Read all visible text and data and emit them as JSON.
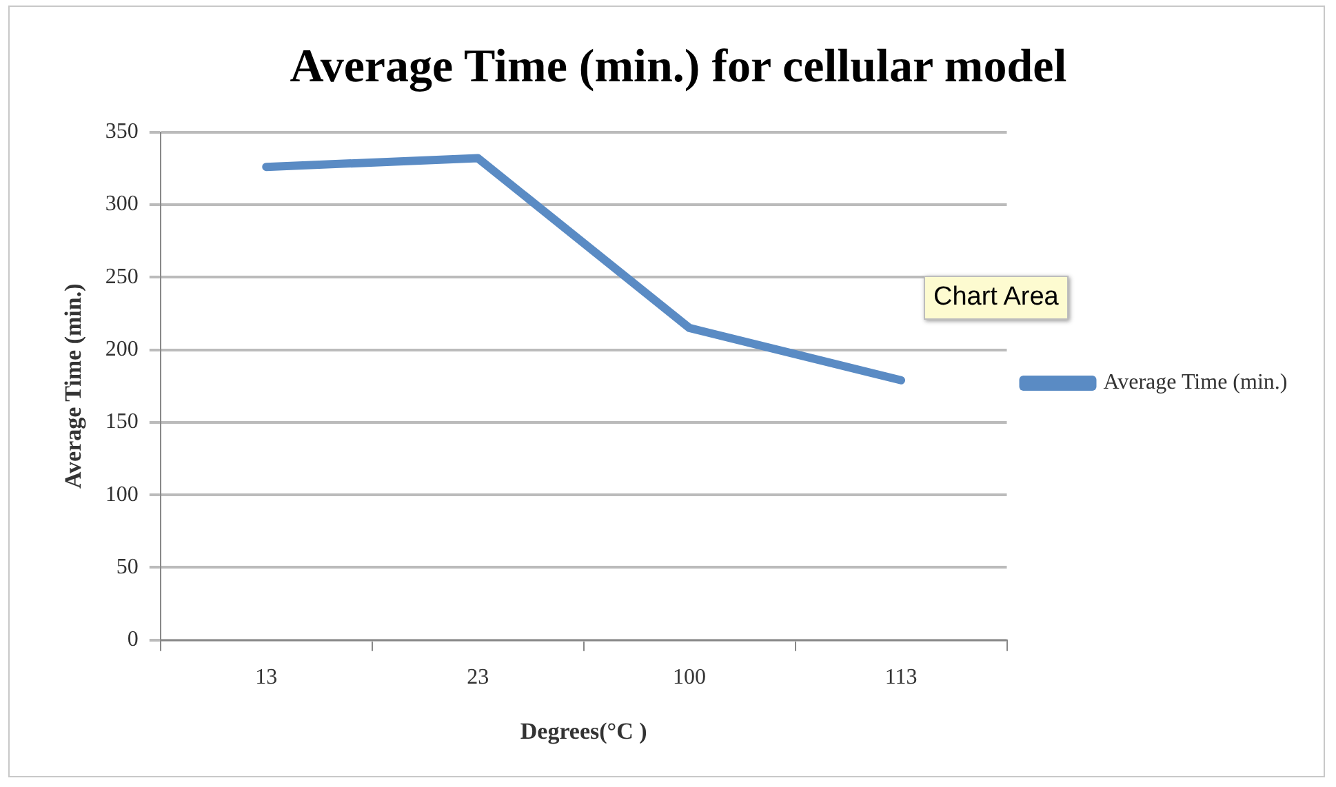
{
  "chart_data": {
    "type": "line",
    "title": "Average Time (min.) for cellular model",
    "xlabel": "Degrees(°C )",
    "ylabel": "Average Time (min.)",
    "categories": [
      "13",
      "23",
      "100",
      "113"
    ],
    "series": [
      {
        "name": "Average Time (min.)",
        "color": "#5a8bc4",
        "values": [
          326,
          332,
          215,
          179
        ]
      }
    ],
    "ylim": [
      0,
      350
    ],
    "yticks": [
      0,
      50,
      100,
      150,
      200,
      250,
      300,
      350
    ],
    "grid": "y",
    "legend": "right",
    "marker": "none",
    "annotations": [
      "Chart Area"
    ]
  }
}
